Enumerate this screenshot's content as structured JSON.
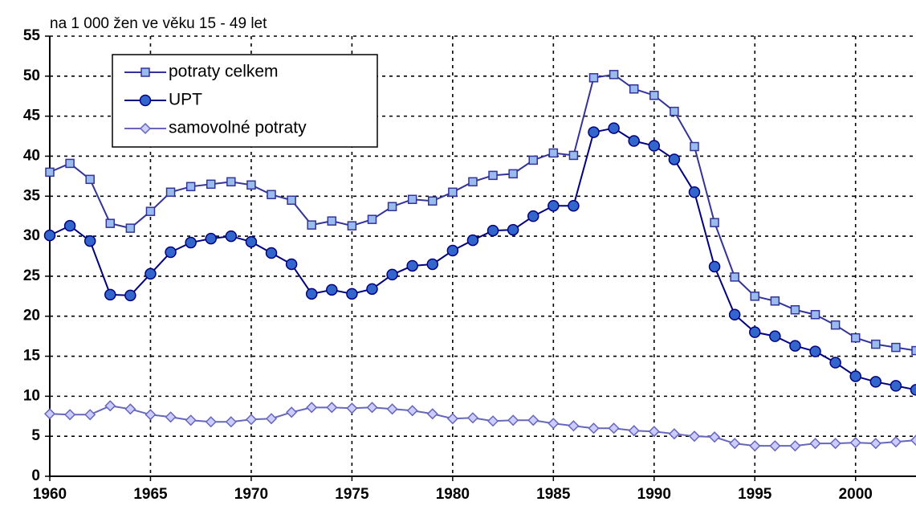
{
  "chart_data": {
    "type": "line",
    "y_label": "na 1 000 žen ve věku 15 - 49 let",
    "x": [
      1960,
      1961,
      1962,
      1963,
      1964,
      1965,
      1966,
      1967,
      1968,
      1969,
      1970,
      1971,
      1972,
      1973,
      1974,
      1975,
      1976,
      1977,
      1978,
      1979,
      1980,
      1981,
      1982,
      1983,
      1984,
      1985,
      1986,
      1987,
      1988,
      1989,
      1990,
      1991,
      1992,
      1993,
      1994,
      1995,
      1996,
      1997,
      1998,
      1999,
      2000,
      2001,
      2002,
      2003
    ],
    "series": [
      {
        "name": "potraty celkem",
        "color": "#333399",
        "marker": "square",
        "marker_fill": "#99bbee",
        "values": [
          38.0,
          39.1,
          37.1,
          31.6,
          31.0,
          33.1,
          35.5,
          36.2,
          36.5,
          36.8,
          36.4,
          35.2,
          34.5,
          31.4,
          31.9,
          31.3,
          32.1,
          33.7,
          34.6,
          34.4,
          35.5,
          36.8,
          37.6,
          37.8,
          39.5,
          40.4,
          40.1,
          49.8,
          50.2,
          48.4,
          47.6,
          45.6,
          41.2,
          31.7,
          24.9,
          22.5,
          21.9,
          20.8,
          20.2,
          18.9,
          17.3,
          16.5,
          16.1,
          15.7
        ]
      },
      {
        "name": "UPT",
        "color": "#000080",
        "marker": "circle",
        "marker_fill": "#3366cc",
        "values": [
          30.1,
          31.3,
          29.4,
          22.7,
          22.6,
          25.3,
          28.0,
          29.2,
          29.7,
          30.0,
          29.3,
          27.9,
          26.5,
          22.8,
          23.3,
          22.8,
          23.4,
          25.2,
          26.3,
          26.5,
          28.2,
          29.5,
          30.7,
          30.8,
          32.5,
          33.8,
          33.8,
          43.0,
          43.5,
          41.9,
          41.3,
          39.6,
          35.5,
          26.2,
          20.2,
          18.0,
          17.5,
          16.3,
          15.6,
          14.2,
          12.5,
          11.8,
          11.3,
          10.8
        ]
      },
      {
        "name": "samovolné potraty",
        "color": "#6666bb",
        "marker": "diamond",
        "marker_fill": "#ccccff",
        "values": [
          7.8,
          7.7,
          7.7,
          8.8,
          8.4,
          7.7,
          7.4,
          7.0,
          6.8,
          6.8,
          7.1,
          7.2,
          8.0,
          8.6,
          8.6,
          8.5,
          8.6,
          8.4,
          8.2,
          7.8,
          7.2,
          7.3,
          6.9,
          7.0,
          7.0,
          6.6,
          6.3,
          6.0,
          6.0,
          5.7,
          5.6,
          5.3,
          5.0,
          4.9,
          4.1,
          3.8,
          3.8,
          3.8,
          4.1,
          4.1,
          4.2,
          4.1,
          4.3,
          4.5
        ]
      }
    ],
    "xlim": [
      1960,
      2003
    ],
    "xticks": [
      1960,
      1965,
      1970,
      1975,
      1980,
      1985,
      1990,
      1995,
      2000
    ],
    "ylim": [
      0,
      55
    ],
    "yticks": [
      0,
      5,
      10,
      15,
      20,
      25,
      30,
      35,
      40,
      45,
      50,
      55
    ],
    "grid": true,
    "legend": "upper left"
  }
}
